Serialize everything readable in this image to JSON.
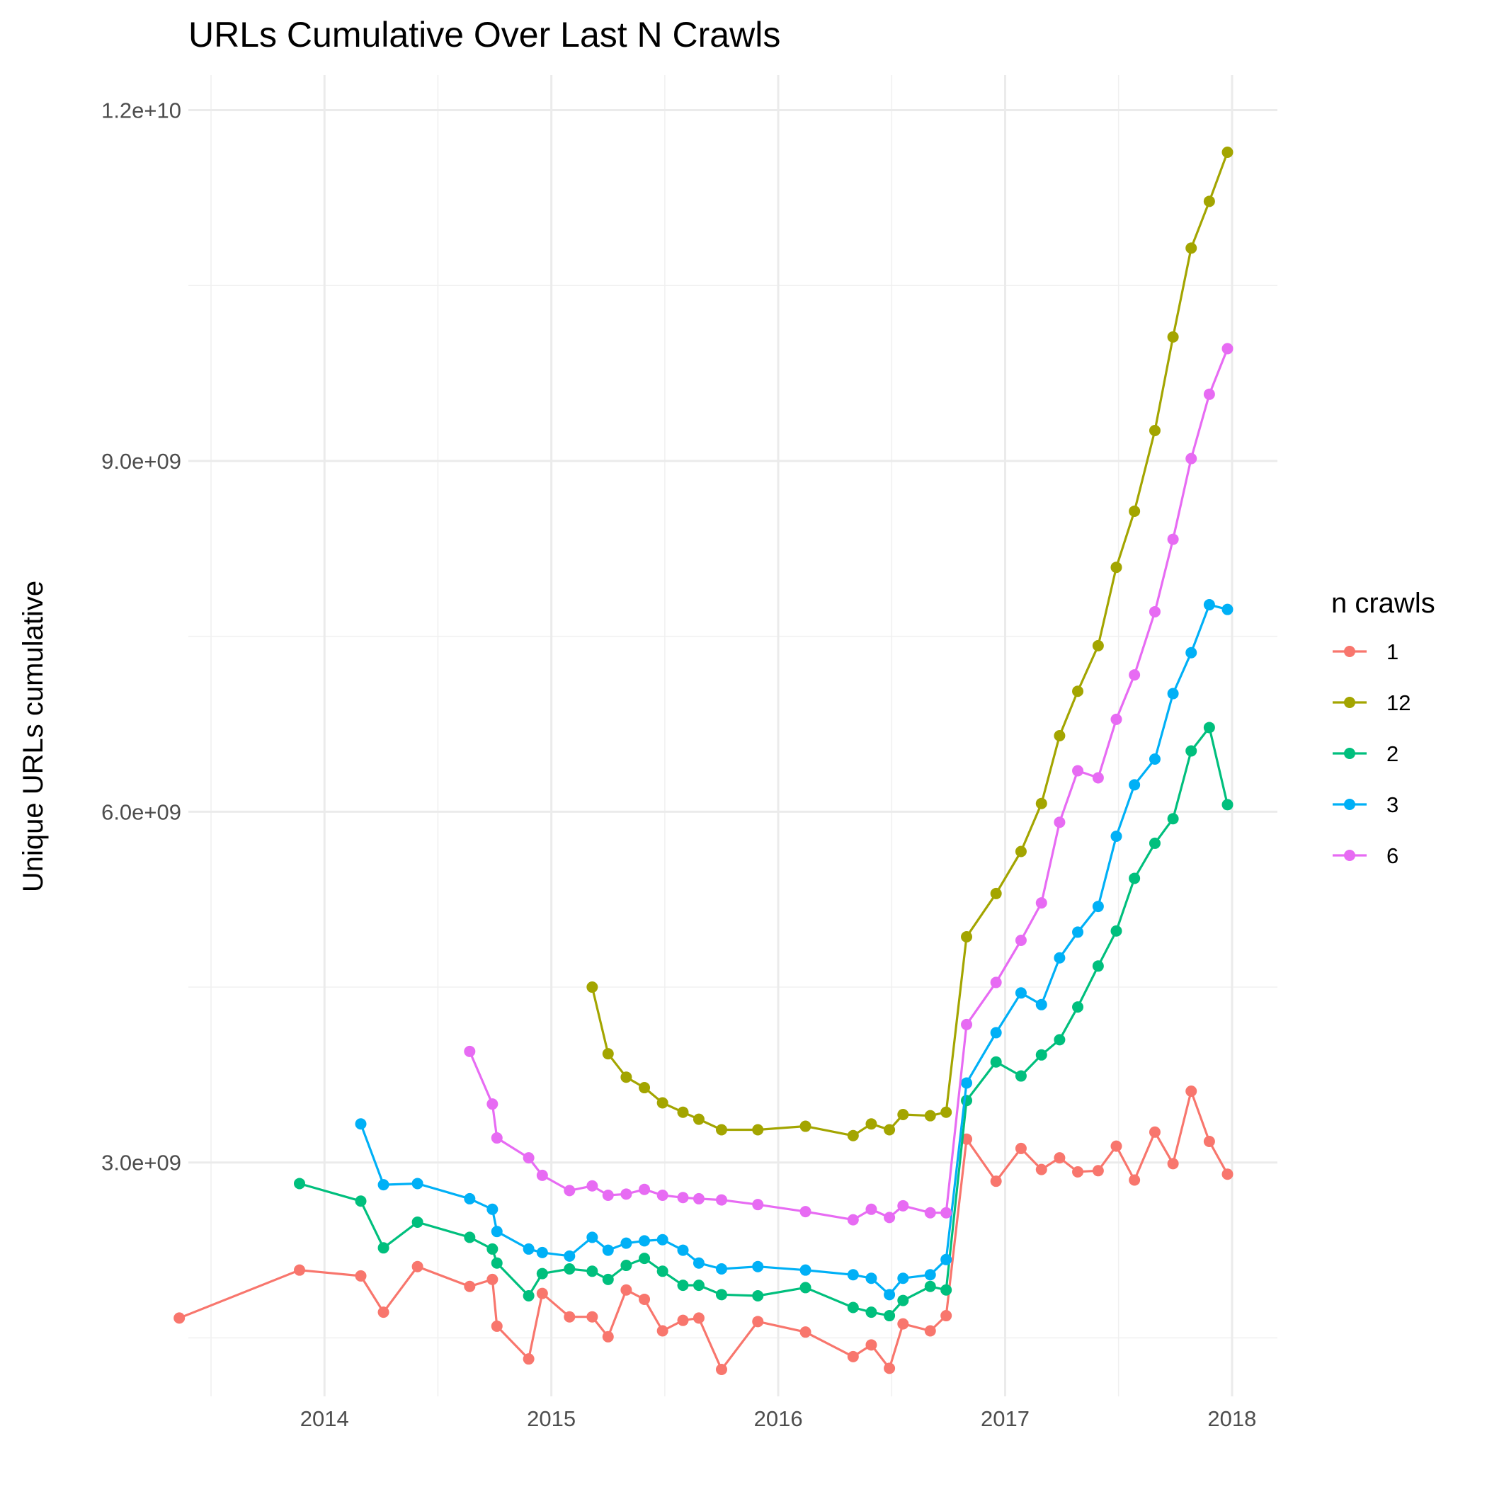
{
  "chart_data": {
    "type": "line",
    "title": "URLs Cumulative Over Last N Crawls",
    "xlabel": "",
    "ylabel": "Unique URLs cumulative",
    "xlim": [
      2013.4,
      2018.2
    ],
    "ylim": [
      1000000000,
      12300000000
    ],
    "x_ticks": [
      2014,
      2015,
      2016,
      2017,
      2018
    ],
    "x_tick_labels": [
      "2014",
      "2015",
      "2016",
      "2017",
      "2018"
    ],
    "y_ticks": [
      3000000000,
      6000000000,
      9000000000,
      12000000000
    ],
    "y_tick_labels": [
      "3.0e+09",
      "6.0e+09",
      "9.0e+09",
      "1.2e+10"
    ],
    "grid": true,
    "legend_title": "n crawls",
    "legend_position": "right",
    "series": [
      {
        "name": "1",
        "color": "#F8766D",
        "points": [
          [
            2013.36,
            1670000000.0
          ],
          [
            2013.89,
            2080000000.0
          ],
          [
            2014.16,
            2030000000.0
          ],
          [
            2014.26,
            1720000000.0
          ],
          [
            2014.41,
            2110000000.0
          ],
          [
            2014.64,
            1940000000.0
          ],
          [
            2014.74,
            2000000000.0
          ],
          [
            2014.76,
            1600000000.0
          ],
          [
            2014.9,
            1320000000.0
          ],
          [
            2014.96,
            1880000000.0
          ],
          [
            2015.08,
            1680000000.0
          ],
          [
            2015.18,
            1680000000.0
          ],
          [
            2015.25,
            1510000000.0
          ],
          [
            2015.33,
            1910000000.0
          ],
          [
            2015.41,
            1830000000.0
          ],
          [
            2015.49,
            1560000000.0
          ],
          [
            2015.58,
            1650000000.0
          ],
          [
            2015.65,
            1670000000.0
          ],
          [
            2015.75,
            1230000000.0
          ],
          [
            2015.91,
            1640000000.0
          ],
          [
            2016.12,
            1550000000.0
          ],
          [
            2016.33,
            1340000000.0
          ],
          [
            2016.41,
            1440000000.0
          ],
          [
            2016.49,
            1240000000.0
          ],
          [
            2016.55,
            1620000000.0
          ],
          [
            2016.67,
            1560000000.0
          ],
          [
            2016.74,
            1690000000.0
          ],
          [
            2016.83,
            3200000000.0
          ],
          [
            2016.96,
            2840000000.0
          ],
          [
            2017.07,
            3120000000.0
          ],
          [
            2017.16,
            2940000000.0
          ],
          [
            2017.24,
            3040000000.0
          ],
          [
            2017.32,
            2920000000.0
          ],
          [
            2017.41,
            2930000000.0
          ],
          [
            2017.49,
            3140000000.0
          ],
          [
            2017.57,
            2850000000.0
          ],
          [
            2017.66,
            3260000000.0
          ],
          [
            2017.74,
            2990000000.0
          ],
          [
            2017.82,
            3610000000.0
          ],
          [
            2017.9,
            3180000000.0
          ],
          [
            2017.98,
            2900000000.0
          ]
        ]
      },
      {
        "name": "12",
        "color": "#A3A500",
        "points": [
          [
            2015.18,
            4500000000.0
          ],
          [
            2015.25,
            3930000000.0
          ],
          [
            2015.33,
            3730000000.0
          ],
          [
            2015.41,
            3640000000.0
          ],
          [
            2015.49,
            3510000000.0
          ],
          [
            2015.58,
            3430000000.0
          ],
          [
            2015.65,
            3370000000.0
          ],
          [
            2015.75,
            3280000000.0
          ],
          [
            2015.91,
            3280000000.0
          ],
          [
            2016.12,
            3310000000.0
          ],
          [
            2016.33,
            3230000000.0
          ],
          [
            2016.41,
            3330000000.0
          ],
          [
            2016.49,
            3280000000.0
          ],
          [
            2016.55,
            3410000000.0
          ],
          [
            2016.67,
            3400000000.0
          ],
          [
            2016.74,
            3430000000.0
          ],
          [
            2016.83,
            4930000000.0
          ],
          [
            2016.96,
            5300000000.0
          ],
          [
            2017.07,
            5660000000.0
          ],
          [
            2017.16,
            6070000000.0
          ],
          [
            2017.24,
            6650000000.0
          ],
          [
            2017.32,
            7030000000.0
          ],
          [
            2017.41,
            7420000000.0
          ],
          [
            2017.49,
            8090000000.0
          ],
          [
            2017.57,
            8570000000.0
          ],
          [
            2017.66,
            9260000000.0
          ],
          [
            2017.74,
            10060000000.0
          ],
          [
            2017.82,
            10820000000.0
          ],
          [
            2017.9,
            11220000000.0
          ],
          [
            2017.98,
            11640000000.0
          ]
        ]
      },
      {
        "name": "2",
        "color": "#00BF7D",
        "points": [
          [
            2013.89,
            2820000000.0
          ],
          [
            2014.16,
            2670000000.0
          ],
          [
            2014.26,
            2270000000.0
          ],
          [
            2014.41,
            2490000000.0
          ],
          [
            2014.64,
            2360000000.0
          ],
          [
            2014.74,
            2260000000.0
          ],
          [
            2014.76,
            2140000000.0
          ],
          [
            2014.9,
            1860000000.0
          ],
          [
            2014.96,
            2050000000.0
          ],
          [
            2015.08,
            2090000000.0
          ],
          [
            2015.18,
            2070000000.0
          ],
          [
            2015.25,
            2000000000.0
          ],
          [
            2015.33,
            2120000000.0
          ],
          [
            2015.41,
            2180000000.0
          ],
          [
            2015.49,
            2070000000.0
          ],
          [
            2015.58,
            1950000000.0
          ],
          [
            2015.65,
            1950000000.0
          ],
          [
            2015.75,
            1870000000.0
          ],
          [
            2015.91,
            1860000000.0
          ],
          [
            2016.12,
            1930000000.0
          ],
          [
            2016.33,
            1760000000.0
          ],
          [
            2016.41,
            1720000000.0
          ],
          [
            2016.49,
            1690000000.0
          ],
          [
            2016.55,
            1820000000.0
          ],
          [
            2016.67,
            1940000000.0
          ],
          [
            2016.74,
            1910000000.0
          ],
          [
            2016.83,
            3530000000.0
          ],
          [
            2016.96,
            3860000000.0
          ],
          [
            2017.07,
            3740000000.0
          ],
          [
            2017.16,
            3920000000.0
          ],
          [
            2017.24,
            4050000000.0
          ],
          [
            2017.32,
            4330000000.0
          ],
          [
            2017.41,
            4680000000.0
          ],
          [
            2017.49,
            4980000000.0
          ],
          [
            2017.57,
            5430000000.0
          ],
          [
            2017.66,
            5730000000.0
          ],
          [
            2017.74,
            5940000000.0
          ],
          [
            2017.82,
            6520000000.0
          ],
          [
            2017.9,
            6720000000.0
          ],
          [
            2017.98,
            6060000000.0
          ]
        ]
      },
      {
        "name": "3",
        "color": "#00B0F6",
        "points": [
          [
            2014.16,
            3330000000.0
          ],
          [
            2014.26,
            2810000000.0
          ],
          [
            2014.41,
            2820000000.0
          ],
          [
            2014.64,
            2690000000.0
          ],
          [
            2014.74,
            2600000000.0
          ],
          [
            2014.76,
            2410000000.0
          ],
          [
            2014.9,
            2260000000.0
          ],
          [
            2014.96,
            2230000000.0
          ],
          [
            2015.08,
            2200000000.0
          ],
          [
            2015.18,
            2360000000.0
          ],
          [
            2015.25,
            2250000000.0
          ],
          [
            2015.33,
            2310000000.0
          ],
          [
            2015.41,
            2330000000.0
          ],
          [
            2015.49,
            2340000000.0
          ],
          [
            2015.58,
            2250000000.0
          ],
          [
            2015.65,
            2140000000.0
          ],
          [
            2015.75,
            2090000000.0
          ],
          [
            2015.91,
            2110000000.0
          ],
          [
            2016.12,
            2080000000.0
          ],
          [
            2016.33,
            2040000000.0
          ],
          [
            2016.41,
            2010000000.0
          ],
          [
            2016.49,
            1870000000.0
          ],
          [
            2016.55,
            2010000000.0
          ],
          [
            2016.67,
            2040000000.0
          ],
          [
            2016.74,
            2170000000.0
          ],
          [
            2016.83,
            3680000000.0
          ],
          [
            2016.96,
            4110000000.0
          ],
          [
            2017.07,
            4450000000.0
          ],
          [
            2017.16,
            4350000000.0
          ],
          [
            2017.24,
            4750000000.0
          ],
          [
            2017.32,
            4970000000.0
          ],
          [
            2017.41,
            5190000000.0
          ],
          [
            2017.49,
            5790000000.0
          ],
          [
            2017.57,
            6230000000.0
          ],
          [
            2017.66,
            6450000000.0
          ],
          [
            2017.74,
            7010000000.0
          ],
          [
            2017.82,
            7360000000.0
          ],
          [
            2017.9,
            7770000000.0
          ],
          [
            2017.98,
            7730000000.0
          ]
        ]
      },
      {
        "name": "6",
        "color": "#E76BF3",
        "points": [
          [
            2014.64,
            3950000000.0
          ],
          [
            2014.74,
            3500000000.0
          ],
          [
            2014.76,
            3210000000.0
          ],
          [
            2014.9,
            3040000000.0
          ],
          [
            2014.96,
            2890000000.0
          ],
          [
            2015.08,
            2760000000.0
          ],
          [
            2015.18,
            2800000000.0
          ],
          [
            2015.25,
            2720000000.0
          ],
          [
            2015.33,
            2730000000.0
          ],
          [
            2015.41,
            2770000000.0
          ],
          [
            2015.49,
            2720000000.0
          ],
          [
            2015.58,
            2700000000.0
          ],
          [
            2015.65,
            2690000000.0
          ],
          [
            2015.75,
            2680000000.0
          ],
          [
            2015.91,
            2640000000.0
          ],
          [
            2016.12,
            2580000000.0
          ],
          [
            2016.33,
            2510000000.0
          ],
          [
            2016.41,
            2600000000.0
          ],
          [
            2016.49,
            2530000000.0
          ],
          [
            2016.55,
            2630000000.0
          ],
          [
            2016.67,
            2570000000.0
          ],
          [
            2016.74,
            2570000000.0
          ],
          [
            2016.83,
            4180000000.0
          ],
          [
            2016.96,
            4540000000.0
          ],
          [
            2017.07,
            4900000000.0
          ],
          [
            2017.16,
            5220000000.0
          ],
          [
            2017.24,
            5910000000.0
          ],
          [
            2017.32,
            6350000000.0
          ],
          [
            2017.41,
            6290000000.0
          ],
          [
            2017.49,
            6790000000.0
          ],
          [
            2017.57,
            7170000000.0
          ],
          [
            2017.66,
            7710000000.0
          ],
          [
            2017.74,
            8330000000.0
          ],
          [
            2017.82,
            9020000000.0
          ],
          [
            2017.9,
            9570000000.0
          ],
          [
            2017.98,
            9960000000.0
          ]
        ]
      }
    ]
  }
}
